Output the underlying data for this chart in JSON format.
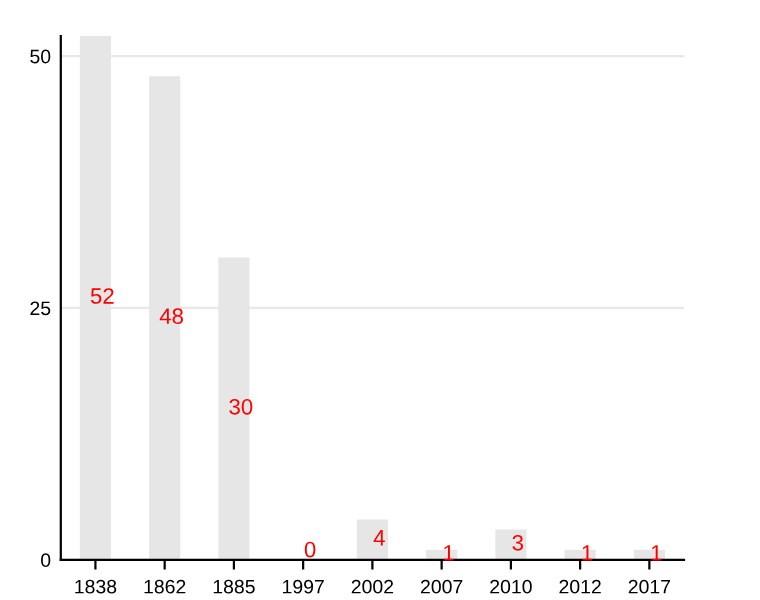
{
  "chart_data": {
    "type": "bar",
    "categories": [
      "1838",
      "1862",
      "1885",
      "1997",
      "2002",
      "2007",
      "2010",
      "2012",
      "2017"
    ],
    "values": [
      52,
      48,
      30,
      0,
      4,
      1,
      3,
      1,
      1
    ],
    "color": "#e6e6e6",
    "ylim": [
      0,
      52
    ],
    "yticks": [
      0,
      25,
      50
    ],
    "grid": "y",
    "data_labels": true
  }
}
